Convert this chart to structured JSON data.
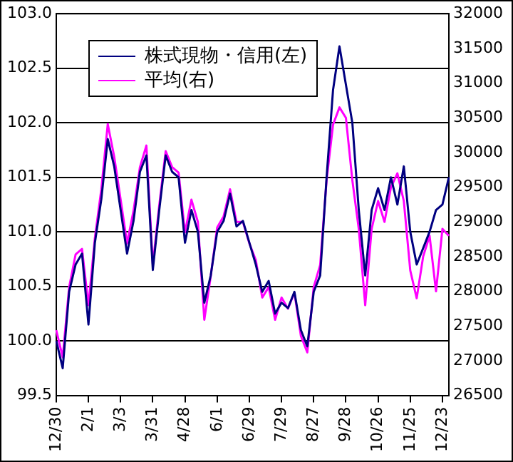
{
  "chart_data": {
    "type": "line",
    "categories": [
      "12/30",
      null,
      null,
      null,
      null,
      "2/1",
      null,
      null,
      null,
      null,
      "3/3",
      null,
      null,
      null,
      null,
      "3/31",
      null,
      null,
      null,
      null,
      "4/28",
      null,
      null,
      null,
      null,
      "6/1",
      null,
      null,
      null,
      null,
      "6/29",
      null,
      null,
      null,
      null,
      "7/29",
      null,
      null,
      null,
      null,
      "8/27",
      null,
      null,
      null,
      null,
      "9/28",
      null,
      null,
      null,
      null,
      "10/26",
      null,
      null,
      null,
      null,
      "11/25",
      null,
      null,
      null,
      null,
      "12/23",
      null
    ],
    "series": [
      {
        "name": "株式現物・信用(左)",
        "color": "#000080",
        "values": [
          100.0,
          99.75,
          100.45,
          100.7,
          100.8,
          100.15,
          100.9,
          101.3,
          101.85,
          101.6,
          101.2,
          100.8,
          101.1,
          101.55,
          101.7,
          100.65,
          101.2,
          101.7,
          101.55,
          101.5,
          100.9,
          101.2,
          101.0,
          100.35,
          100.6,
          101.0,
          101.1,
          101.35,
          101.05,
          101.1,
          100.9,
          100.7,
          100.45,
          100.55,
          100.25,
          100.35,
          100.3,
          100.45,
          100.1,
          99.95,
          100.45,
          100.6,
          101.5,
          102.3,
          102.7,
          102.35,
          102.0,
          101.2,
          100.6,
          101.2,
          101.4,
          101.2,
          101.5,
          101.25,
          101.6,
          101.0,
          100.7,
          100.85,
          101.0,
          101.2,
          101.25,
          101.5
        ]
      },
      {
        "name": "平均(右)",
        "color": "#ff00ff",
        "axis": "y2",
        "values": [
          27440,
          27050,
          28060,
          28530,
          28610,
          27800,
          28770,
          29470,
          30410,
          29940,
          29320,
          28690,
          29160,
          29790,
          30100,
          28380,
          29240,
          30020,
          29790,
          29710,
          28850,
          29320,
          29000,
          27590,
          28220,
          28920,
          29080,
          29470,
          29000,
          29000,
          28690,
          28450,
          27910,
          28060,
          27590,
          27910,
          27750,
          27980,
          27360,
          27120,
          28060,
          28380,
          29600,
          30400,
          30650,
          30500,
          29600,
          28900,
          27800,
          28900,
          29300,
          29000,
          29500,
          29700,
          29300,
          28300,
          27900,
          28500,
          28800,
          28000,
          28900,
          28800
        ]
      }
    ],
    "ylim": [
      99.5,
      103.0
    ],
    "yticks": [
      {
        "value": 99.5,
        "label": "99.5"
      },
      {
        "value": 100,
        "label": "100.0"
      },
      {
        "value": 100.5,
        "label": "100.5"
      },
      {
        "value": 101,
        "label": "101.0"
      },
      {
        "value": 101.5,
        "label": "101.5"
      },
      {
        "value": 102,
        "label": "102.0"
      },
      {
        "value": 102.5,
        "label": "102.5"
      },
      {
        "value": 103,
        "label": "103.0"
      }
    ],
    "y2lim": [
      26500,
      32000
    ],
    "y2ticks": [
      26500,
      27000,
      27500,
      28000,
      28500,
      29000,
      29500,
      30000,
      30500,
      31000,
      31500,
      32000
    ],
    "grid": "y",
    "legend": "top left",
    "marker": "none",
    "line_style": "solid"
  }
}
